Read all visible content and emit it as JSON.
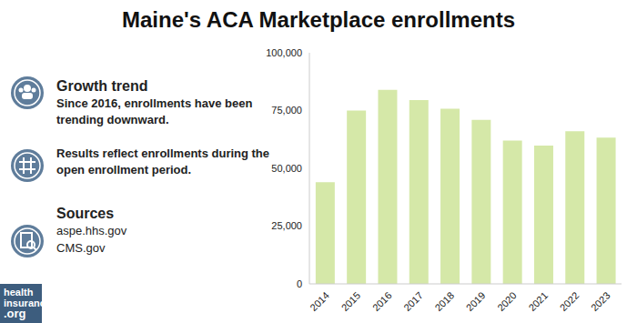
{
  "chart_data": {
    "type": "bar",
    "title": "Maine's ACA Marketplace enrollments",
    "categories": [
      "2014",
      "2015",
      "2016",
      "2017",
      "2018",
      "2019",
      "2020",
      "2021",
      "2022",
      "2023"
    ],
    "values": [
      44000,
      75000,
      84000,
      79500,
      75800,
      71000,
      62000,
      59800,
      66000,
      63300
    ],
    "color": "#d5e8a8",
    "ylim": [
      0,
      100000
    ],
    "yticks": [
      0,
      {
        "value": 25000,
        "label": "25,000"
      },
      {
        "value": 50000,
        "label": "50,000"
      },
      {
        "value": 75000,
        "label": "75,000"
      },
      {
        "value": 100000,
        "label": "100,000"
      }
    ],
    "grid": false,
    "data_labels": false
  },
  "sidebar": {
    "growth_title": "Growth trend",
    "growth_text": "Since 2016, enrollments have been trending downward.",
    "period_text": "Results reflect enrollments during the open enrollment period.",
    "sources_title": "Sources",
    "sources": [
      "aspe.hhs.gov",
      "CMS.gov"
    ],
    "logo": [
      "health",
      "insurance",
      ".org"
    ]
  }
}
